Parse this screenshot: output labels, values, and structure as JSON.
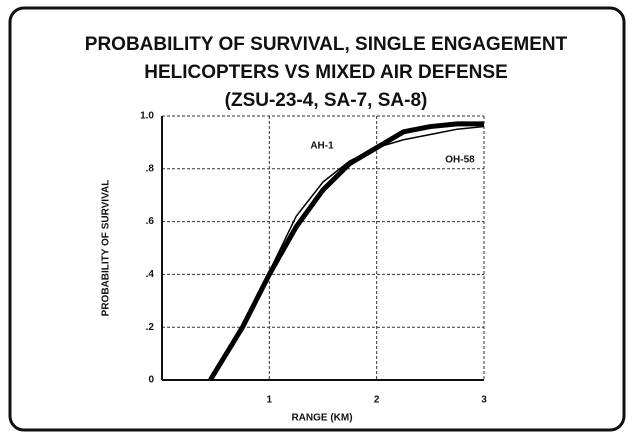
{
  "chart_data": {
    "type": "line",
    "title": [
      "PROBABILITY OF SURVIVAL, SINGLE ENGAGEMENT",
      "HELICOPTERS VS MIXED AIR DEFENSE",
      "(ZSU-23-4, SA-7, SA-8)"
    ],
    "x_label": "RANGE (KM)",
    "y_label": "PROBABILITY OF SURVIVAL",
    "x": [
      0.45,
      0.75,
      1.0,
      1.25,
      1.5,
      1.75,
      2.0,
      2.25,
      2.5,
      2.75,
      3.0
    ],
    "series": [
      {
        "name": "AH-1",
        "color": "#000000",
        "values": [
          0,
          0.2,
          0.4,
          0.58,
          0.72,
          0.82,
          0.88,
          0.94,
          0.96,
          0.97,
          0.97
        ]
      },
      {
        "name": "OH-58",
        "color": "#000000",
        "values": [
          0,
          0.2,
          0.41,
          0.62,
          0.75,
          0.83,
          0.88,
          0.91,
          0.93,
          0.95,
          0.96
        ]
      }
    ],
    "xlim": [
      0,
      3
    ],
    "xticks": [
      1,
      2,
      3
    ],
    "ylim": [
      0,
      1
    ],
    "yticks": [
      0,
      {
        "value": 0.2,
        "label": ".2"
      },
      {
        "value": 0.4,
        "label": ".4"
      },
      {
        "value": 0.6,
        "label": ".6"
      },
      {
        "value": 0.8,
        "label": ".8"
      },
      {
        "value": 1.0,
        "label": "1.0"
      }
    ],
    "grid": true
  }
}
